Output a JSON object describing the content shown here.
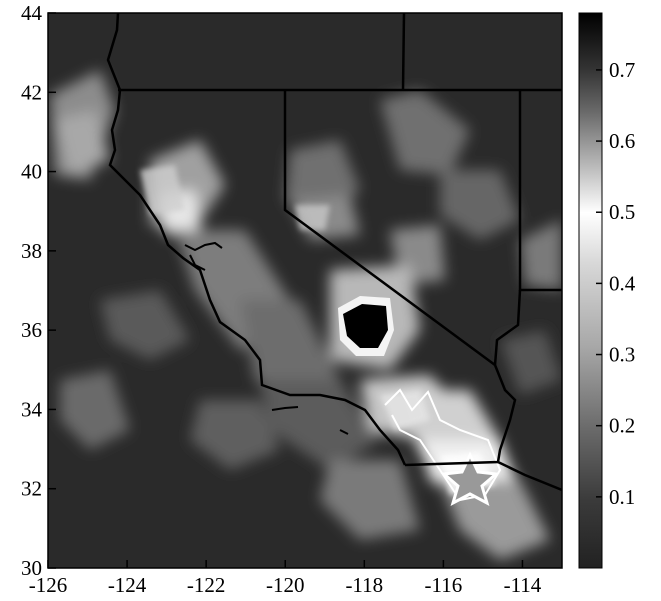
{
  "map": {
    "x_ticks": [
      "-126",
      "-124",
      "-122",
      "-120",
      "-118",
      "-116",
      "-114"
    ],
    "y_ticks": [
      "44",
      "42",
      "40",
      "38",
      "36",
      "34",
      "32",
      "30"
    ],
    "x_range": [
      -126,
      -113
    ],
    "y_range": [
      30,
      44
    ],
    "colorbar": {
      "ticks": [
        "0.7",
        "0.6",
        "0.5",
        "0.4",
        "0.3",
        "0.2",
        "0.1"
      ],
      "range": [
        0.0,
        0.78
      ],
      "colormap": "diverging-gray (dark at ends, white near 0.5)"
    },
    "colors": {
      "background_field": "#2a2a2a",
      "boundary": "#000000",
      "highlight": "#ffffff"
    },
    "markers": [
      {
        "type": "star",
        "lon": -115.2,
        "lat": 32.3
      }
    ]
  }
}
